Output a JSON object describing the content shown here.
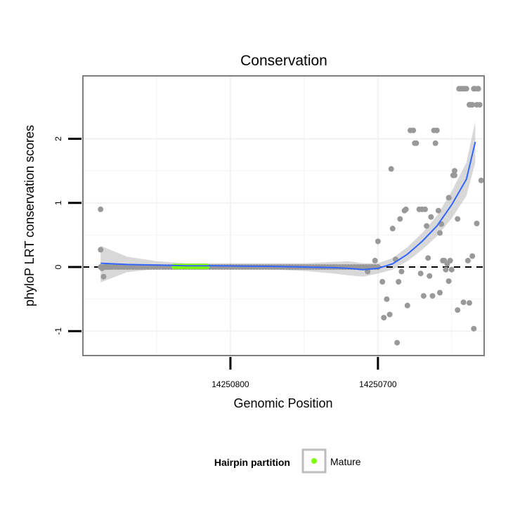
{
  "chart_data": {
    "type": "scatter",
    "title": "Conservation",
    "xlabel": "Genomic Position",
    "ylabel": "phyloP LRT conservation scores",
    "x_reversed": true,
    "xlim": [
      14250900,
      14250628
    ],
    "ylim": [
      -1.38,
      2.98
    ],
    "x_ticks": [
      14250800,
      14250700
    ],
    "x_tick_labels": [
      "14250800",
      "14250700"
    ],
    "y_ticks": [
      -1,
      0,
      1,
      2
    ],
    "y_tick_labels": [
      "-1",
      "0",
      "1",
      "2"
    ],
    "reference_line": {
      "y": 0,
      "style": "dashed"
    },
    "grid": true,
    "legend": {
      "title": "Hairpin partition",
      "position": "bottom",
      "entries": [
        {
          "label": "Mature",
          "color": "#7fff00"
        }
      ]
    },
    "colors": {
      "points": "#999999",
      "mature": "#7fff00",
      "smooth": "#3366ff",
      "ribbon": "#bebebe",
      "panel_border": "#7f7f7f",
      "grid": "#f2f2f2"
    },
    "mature_segment": {
      "x_start": 14250838,
      "x_end": 14250815,
      "y": 0.01
    },
    "smooth": {
      "x": [
        14250888,
        14250870,
        14250850,
        14250830,
        14250810,
        14250790,
        14250770,
        14250750,
        14250730,
        14250720,
        14250710,
        14250700,
        14250690,
        14250680,
        14250670,
        14250660,
        14250650,
        14250640,
        14250634
      ],
      "y": [
        0.06,
        0.04,
        0.03,
        0.02,
        0.02,
        0.015,
        0.01,
        0.0,
        -0.01,
        -0.02,
        -0.04,
        -0.02,
        0.05,
        0.2,
        0.4,
        0.64,
        0.97,
        1.37,
        1.95
      ],
      "lower": [
        -0.24,
        -0.08,
        -0.03,
        -0.02,
        -0.02,
        -0.03,
        -0.04,
        -0.06,
        -0.1,
        -0.13,
        -0.15,
        -0.1,
        -0.04,
        0.09,
        0.27,
        0.48,
        0.76,
        1.11,
        1.63
      ],
      "upper": [
        0.33,
        0.16,
        0.09,
        0.06,
        0.06,
        0.06,
        0.06,
        0.06,
        0.08,
        0.09,
        0.06,
        0.06,
        0.14,
        0.31,
        0.53,
        0.8,
        1.18,
        1.63,
        2.27
      ]
    },
    "points": {
      "x": [
        14250888,
        14250888,
        14250887,
        14250886,
        14250885,
        14250884,
        14250883,
        14250882,
        14250850,
        14250800,
        14250760,
        14250730,
        14250707,
        14250704,
        14250702,
        14250700,
        14250697,
        14250696,
        14250694,
        14250692,
        14250691,
        14250690,
        14250688,
        14250687,
        14250686,
        14250685,
        14250684,
        14250682,
        14250681,
        14250680,
        14250678,
        14250676,
        14250675,
        14250674,
        14250672,
        14250671,
        14250670,
        14250669,
        14250668,
        14250667,
        14250666,
        14250665,
        14250664,
        14250663,
        14250662,
        14250661,
        14250660,
        14250659,
        14250658,
        14250657,
        14250656,
        14250655,
        14250654,
        14250653,
        14250652,
        14250651,
        14250650,
        14250649,
        14250648,
        14250646,
        14250645,
        14250644,
        14250643,
        14250642,
        14250641,
        14250640,
        14250639,
        14250638,
        14250637,
        14250636,
        14250635,
        14250634,
        14250633,
        14250632
      ],
      "y": [
        0.9,
        0.27,
        -0.02,
        -0.15,
        0.0,
        0.0,
        0.0,
        0.0,
        0.0,
        0.0,
        0.0,
        0.0,
        -0.07,
        0.0,
        0.1,
        0.4,
        -0.23,
        -0.79,
        -0.5,
        -0.74,
        1.53,
        0.6,
        0.12,
        -1.18,
        -0.23,
        0.75,
        -0.07,
        0.88,
        0.9,
        -0.6,
        2.13,
        2.13,
        1.93,
        1.93,
        0.9,
        -0.1,
        0.9,
        -0.45,
        0.9,
        0.64,
        0.14,
        -0.14,
        0.78,
        -0.45,
        2.13,
        1.93,
        2.13,
        0.88,
        -0.4,
        0.67,
        0.1,
        0.1,
        -0.04,
        0.05,
        1.08,
        0.1,
        -0.04,
        1.43,
        1.43,
        0.75,
        2.78,
        2.78,
        2.78,
        2.78,
        2.78,
        2.78,
        0.1,
        2.53,
        2.53,
        2.53,
        2.78,
        2.78,
        2.53,
        2.78
      ],
      "extra_x": [
        14250631,
        14250630,
        14250636,
        14250642,
        14250646,
        14250648,
        14250652,
        14250658,
        14250638,
        14250635,
        14250633,
        14250632
      ],
      "extra_y": [
        2.53,
        1.35,
        0.17,
        -0.55,
        -0.67,
        1.5,
        -0.22,
        0.53,
        -0.56,
        -0.96,
        0.68,
        2.78
      ]
    }
  }
}
